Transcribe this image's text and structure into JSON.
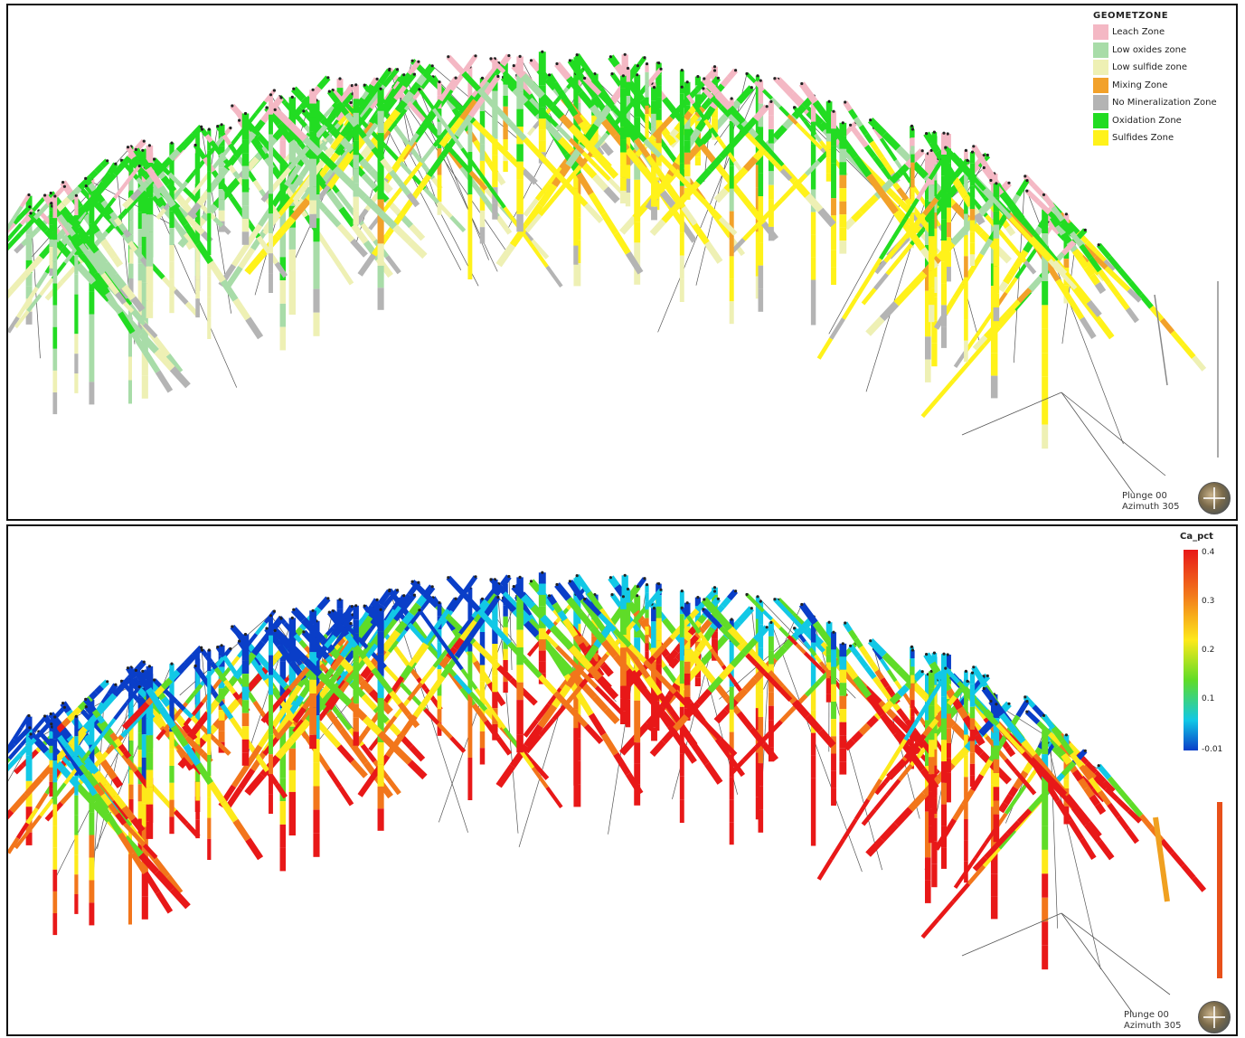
{
  "top_panel": {
    "legend_title": "GEOMETZONE",
    "legend": [
      {
        "label": "Leach Zone",
        "color": "#f4b8c4"
      },
      {
        "label": "Low oxides zone",
        "color": "#a8dca8"
      },
      {
        "label": "Low sulfide zone",
        "color": "#eef0b4"
      },
      {
        "label": "Mixing Zone",
        "color": "#f2a12a"
      },
      {
        "label": "No Mineralization Zone",
        "color": "#b4b4b4"
      },
      {
        "label": "Oxidation Zone",
        "color": "#22dc22"
      },
      {
        "label": "Sulfides Zone",
        "color": "#fff21a"
      }
    ],
    "view": {
      "plunge": "Plunge 00",
      "azimuth": "Azimuth 305"
    }
  },
  "bottom_panel": {
    "legend_title": "Ca_pct",
    "ticks": [
      "0.4",
      "0.3",
      "0.2",
      "0.1",
      "-0.01"
    ],
    "view": {
      "plunge": "Plunge 00",
      "azimuth": "Azimuth 305"
    }
  }
}
